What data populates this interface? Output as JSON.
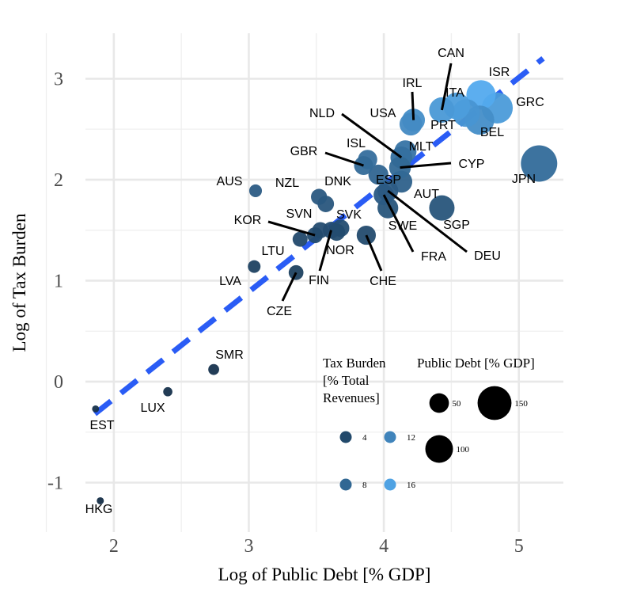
{
  "chart_data": {
    "type": "scatter",
    "xlabel": "Log of Public Debt [% GDP]",
    "ylabel": "Log of Tax Burden",
    "xlim": [
      1.79,
      5.33
    ],
    "ylim": [
      -1.49,
      3.45
    ],
    "xticks": [
      "2",
      "3",
      "4",
      "5"
    ],
    "yticks": [
      "-1",
      "0",
      "1",
      "2",
      "3"
    ],
    "grid": true,
    "color_encoding": "Tax Burden [% Total Revenues]",
    "size_encoding": "Public Debt [% GDP]",
    "colors": {
      "low": "#132B43",
      "high": "#56B1F7",
      "trend": "#2a5cf5"
    },
    "trend_line": {
      "style": "dashed",
      "slope": 1.06,
      "intercept": -2.29,
      "x_range": [
        1.86,
        5.18
      ]
    },
    "points": [
      {
        "label": "EST",
        "x": 1.865,
        "y": -0.27
      },
      {
        "label": "HKG",
        "x": 1.9,
        "y": -1.18
      },
      {
        "label": "LUX",
        "x": 2.4,
        "y": -0.1
      },
      {
        "label": "SMR",
        "x": 2.74,
        "y": 0.12
      },
      {
        "label": "LVA",
        "x": 3.04,
        "y": 1.14
      },
      {
        "label": "CZE",
        "x": 3.35,
        "y": 1.08
      },
      {
        "label": "LTU",
        "x": 3.38,
        "y": 1.41
      },
      {
        "label": "AUS",
        "x": 3.05,
        "y": 1.89
      },
      {
        "label": "DNK",
        "x": 3.52,
        "y": 1.83
      },
      {
        "label": "NZL",
        "x": 3.57,
        "y": 1.76
      },
      {
        "label": "KOR",
        "x": 3.49,
        "y": 1.45
      },
      {
        "label": "SVN",
        "x": 3.53,
        "y": 1.5
      },
      {
        "label": "FIN",
        "x": 3.61,
        "y": 1.5
      },
      {
        "label": "NOR",
        "x": 3.65,
        "y": 1.48
      },
      {
        "label": "SVK",
        "x": 3.68,
        "y": 1.52
      },
      {
        "label": "CHE",
        "x": 3.87,
        "y": 1.45
      },
      {
        "label": "SWE",
        "x": 4.03,
        "y": 1.72
      },
      {
        "label": "FRA",
        "x": 4.0,
        "y": 1.85
      },
      {
        "label": "DEU",
        "x": 4.03,
        "y": 1.89
      },
      {
        "label": "AUT",
        "x": 4.13,
        "y": 1.98
      },
      {
        "label": "ESP",
        "x": 3.96,
        "y": 2.05
      },
      {
        "label": "CYP",
        "x": 4.12,
        "y": 2.12
      },
      {
        "label": "NLD",
        "x": 4.13,
        "y": 2.22
      },
      {
        "label": "MLT",
        "x": 4.16,
        "y": 2.28
      },
      {
        "label": "ISL",
        "x": 3.88,
        "y": 2.2
      },
      {
        "label": "GBR",
        "x": 3.85,
        "y": 2.14
      },
      {
        "label": "SGP",
        "x": 4.43,
        "y": 1.72
      },
      {
        "label": "JPN",
        "x": 5.15,
        "y": 2.16
      },
      {
        "label": "USA",
        "x": 4.2,
        "y": 2.55
      },
      {
        "label": "IRL",
        "x": 4.22,
        "y": 2.59
      },
      {
        "label": "CAN",
        "x": 4.43,
        "y": 2.69
      },
      {
        "label": "ITA",
        "x": 4.54,
        "y": 2.73
      },
      {
        "label": "PRT",
        "x": 4.61,
        "y": 2.66
      },
      {
        "label": "BEL",
        "x": 4.71,
        "y": 2.59
      },
      {
        "label": "GRC",
        "x": 4.84,
        "y": 2.71
      },
      {
        "label": "ISR",
        "x": 4.72,
        "y": 2.84
      }
    ],
    "legend": {
      "color_title": [
        "Tax Burden",
        "[% Total",
        "Revenues]"
      ],
      "color_items": [
        "4",
        "8",
        "12",
        "16"
      ],
      "size_title": "Public Debt [% GDP]",
      "size_items": [
        "50",
        "100",
        "150"
      ],
      "placement": "bottom-right inside"
    }
  }
}
